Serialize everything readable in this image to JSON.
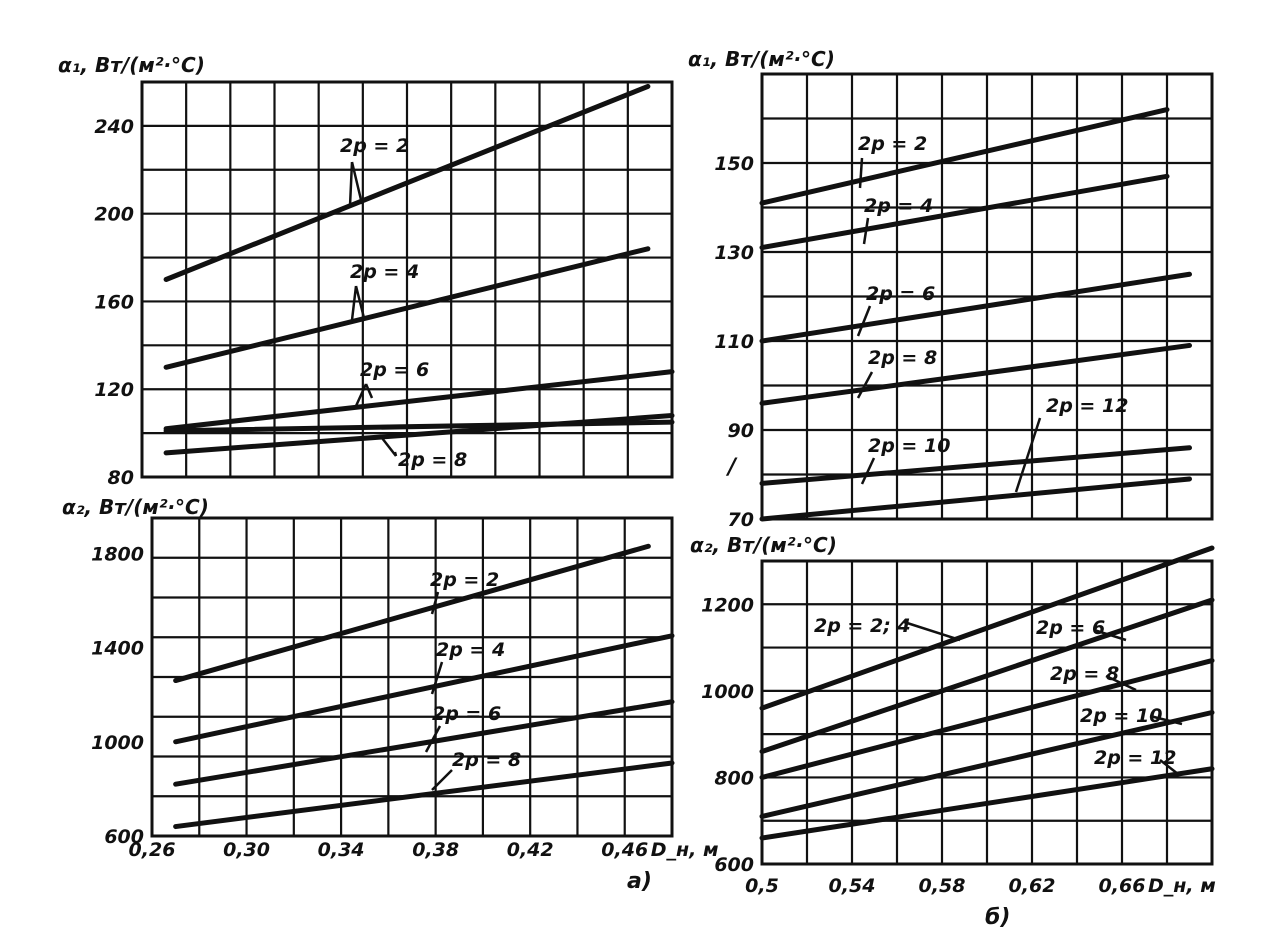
{
  "chart_data": [
    {
      "type": "line",
      "panel": "a-top",
      "ylabel": "α₁, Вт/(м²·°С)",
      "xlim": [
        0.26,
        0.48
      ],
      "ylim": [
        80,
        260
      ],
      "yticks": [
        "240",
        "200",
        "160",
        "120",
        "80"
      ],
      "ytick_values": [
        240,
        200,
        160,
        120,
        80
      ],
      "xticks": [],
      "grid": true,
      "series": [
        {
          "name": "2p = 2",
          "x": [
            0.27,
            0.47
          ],
          "y": [
            170,
            258
          ]
        },
        {
          "name": "2p = 4",
          "x": [
            0.27,
            0.47
          ],
          "y": [
            130,
            184
          ]
        },
        {
          "name": "2p = 6",
          "x": [
            0.27,
            0.48
          ],
          "y": [
            102,
            128
          ]
        },
        {
          "name": "2p = 8",
          "x": [
            0.27,
            0.48
          ],
          "y": [
            91,
            108
          ]
        },
        {
          "name": "",
          "x": [
            0.27,
            0.48
          ],
          "y": [
            101,
            105
          ]
        }
      ]
    },
    {
      "type": "line",
      "panel": "a-bottom",
      "ylabel": "α₂, Вт/(м²·°С)",
      "xlabel": "D_н, м",
      "xlim": [
        0.26,
        0.48
      ],
      "ylim": [
        600,
        1950
      ],
      "yticks": [
        "1800",
        "1400",
        "1000",
        "600"
      ],
      "ytick_values": [
        1800,
        1400,
        1000,
        600
      ],
      "xticks": [
        "0,26",
        "0,30",
        "0,34",
        "0,38",
        "0,42",
        "0,46"
      ],
      "xtick_values": [
        0.26,
        0.3,
        0.34,
        0.38,
        0.42,
        0.46
      ],
      "grid": true,
      "series": [
        {
          "name": "2p = 2",
          "x": [
            0.27,
            0.47
          ],
          "y": [
            1260,
            1830
          ]
        },
        {
          "name": "2p = 4",
          "x": [
            0.27,
            0.48
          ],
          "y": [
            1000,
            1450
          ]
        },
        {
          "name": "2p = 6",
          "x": [
            0.27,
            0.48
          ],
          "y": [
            820,
            1170
          ]
        },
        {
          "name": "2p = 8",
          "x": [
            0.27,
            0.48
          ],
          "y": [
            640,
            910
          ]
        }
      ]
    },
    {
      "type": "line",
      "panel": "b-top",
      "ylabel": "α₁, Вт/(м²·°С)",
      "xlim": [
        0.5,
        0.7
      ],
      "ylim": [
        70,
        170
      ],
      "yticks": [
        "150",
        "130",
        "110",
        "90",
        "70"
      ],
      "ytick_values": [
        150,
        130,
        110,
        90,
        70
      ],
      "xticks": [],
      "grid": true,
      "series": [
        {
          "name": "2p = 2",
          "x": [
            0.5,
            0.68
          ],
          "y": [
            141,
            162
          ]
        },
        {
          "name": "2p = 4",
          "x": [
            0.5,
            0.68
          ],
          "y": [
            131,
            147
          ]
        },
        {
          "name": "2p = 6",
          "x": [
            0.5,
            0.69
          ],
          "y": [
            110,
            125
          ]
        },
        {
          "name": "2p = 8",
          "x": [
            0.5,
            0.69
          ],
          "y": [
            96,
            109
          ]
        },
        {
          "name": "2p = 10",
          "x": [
            0.5,
            0.69
          ],
          "y": [
            78,
            86
          ]
        },
        {
          "name": "2p = 12",
          "x": [
            0.5,
            0.69
          ],
          "y": [
            70,
            79
          ]
        }
      ]
    },
    {
      "type": "line",
      "panel": "b-bottom",
      "ylabel": "α₂, Вт/(м²·°С)",
      "xlabel": "D_н, м",
      "xlim": [
        0.5,
        0.7
      ],
      "ylim": [
        600,
        1300
      ],
      "yticks": [
        "1200",
        "1000",
        "800",
        "600"
      ],
      "ytick_values": [
        1200,
        1000,
        800,
        600
      ],
      "xticks": [
        "0,5",
        "0,54",
        "0,58",
        "0,62",
        "0,66"
      ],
      "xtick_values": [
        0.5,
        0.54,
        0.58,
        0.62,
        0.66
      ],
      "grid": true,
      "series": [
        {
          "name": "2p = 2; 4",
          "x": [
            0.5,
            0.7
          ],
          "y": [
            960,
            1330
          ]
        },
        {
          "name": "2p = 6",
          "x": [
            0.5,
            0.7
          ],
          "y": [
            860,
            1210
          ]
        },
        {
          "name": "2p = 8",
          "x": [
            0.5,
            0.7
          ],
          "y": [
            800,
            1070
          ]
        },
        {
          "name": "2p = 10",
          "x": [
            0.5,
            0.7
          ],
          "y": [
            710,
            950
          ]
        },
        {
          "name": "2p = 12",
          "x": [
            0.5,
            0.7
          ],
          "y": [
            660,
            820
          ]
        }
      ]
    }
  ],
  "captions": {
    "a": "а)",
    "b": "б)"
  },
  "stray_mark": "/"
}
